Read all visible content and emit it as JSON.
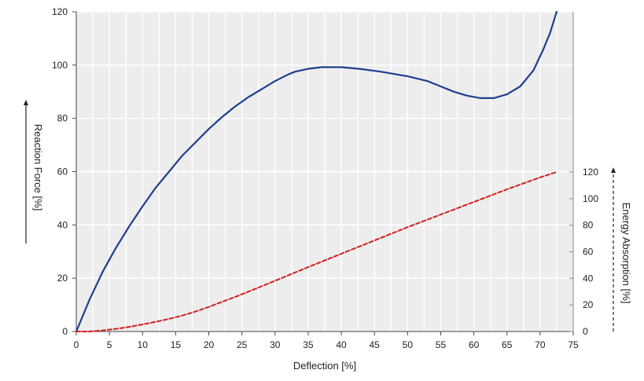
{
  "chart_data": {
    "type": "line",
    "xlabel": "Deflection [%]",
    "ylabel_left": "Reaction Force [%]",
    "ylabel_right": "Energy Absorption [%]",
    "x_ticks": [
      0,
      5,
      10,
      15,
      20,
      25,
      30,
      35,
      40,
      45,
      50,
      55,
      60,
      65,
      70,
      75
    ],
    "y_left_ticks": [
      0,
      20,
      40,
      60,
      80,
      100,
      120
    ],
    "y_right_ticks": [
      0,
      20,
      40,
      60,
      80,
      100,
      120
    ],
    "xlim": [
      0,
      75
    ],
    "ylim_left": [
      0,
      120
    ],
    "ylim_right": [
      0,
      120
    ],
    "grid": true,
    "series": [
      {
        "axis": "left",
        "color": "#1f3f8f",
        "style": "solid",
        "points": [
          [
            0,
            0
          ],
          [
            2,
            12
          ],
          [
            4,
            22.5
          ],
          [
            6,
            31.5
          ],
          [
            8,
            39.5
          ],
          [
            10,
            47
          ],
          [
            12,
            54
          ],
          [
            14,
            60
          ],
          [
            16,
            66
          ],
          [
            18,
            71
          ],
          [
            20,
            76
          ],
          [
            22,
            80.5
          ],
          [
            24,
            84.5
          ],
          [
            26,
            88
          ],
          [
            28,
            91
          ],
          [
            30,
            94
          ],
          [
            32,
            96.5
          ],
          [
            33,
            97.5
          ],
          [
            35,
            98.6
          ],
          [
            37,
            99.2
          ],
          [
            40,
            99.2
          ],
          [
            43,
            98.5
          ],
          [
            46,
            97.5
          ],
          [
            50,
            95.8
          ],
          [
            53,
            94
          ],
          [
            55,
            92
          ],
          [
            57,
            90
          ],
          [
            59,
            88.5
          ],
          [
            61,
            87.6
          ],
          [
            63,
            87.6
          ],
          [
            65,
            89
          ],
          [
            67,
            92
          ],
          [
            69,
            98
          ],
          [
            70.5,
            106
          ],
          [
            71.5,
            112
          ],
          [
            72.5,
            120
          ]
        ]
      },
      {
        "axis": "right",
        "color": "#d0201f",
        "style": "dashed",
        "points": [
          [
            0,
            0
          ],
          [
            2,
            0
          ],
          [
            4,
            0.8
          ],
          [
            6,
            2
          ],
          [
            8,
            3.5
          ],
          [
            10,
            5.3
          ],
          [
            12,
            7.3
          ],
          [
            14,
            9.5
          ],
          [
            16,
            12
          ],
          [
            18,
            15
          ],
          [
            20,
            18.5
          ],
          [
            25,
            28
          ],
          [
            30,
            38.2
          ],
          [
            35,
            48.5
          ],
          [
            40,
            58.5
          ],
          [
            45,
            68.5
          ],
          [
            50,
            78.5
          ],
          [
            55,
            88
          ],
          [
            60,
            97.5
          ],
          [
            65,
            107
          ],
          [
            70,
            116
          ],
          [
            72.5,
            120
          ]
        ]
      }
    ]
  }
}
